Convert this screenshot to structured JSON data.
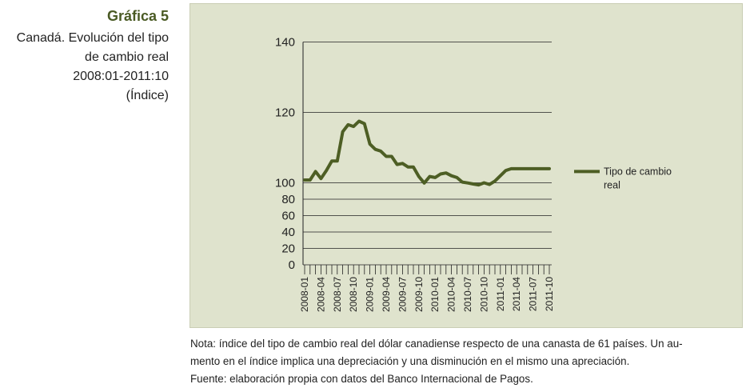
{
  "caption": {
    "number": "Gráfica 5",
    "lines": [
      "Canadá. Evolución del tipo",
      "de cambio real",
      "2008:01-2011:10",
      "(Índice)"
    ]
  },
  "notes": {
    "line1": "Nota: índice del tipo de cambio real del dólar canadiense respecto de una canasta de 61 países. Un au-",
    "line2": "mento en el índice implica una depreciación y una disminución en el mismo una apreciación.",
    "line3": "Fuente: elaboración propia con datos del Banco Internacional de Pagos."
  },
  "colors": {
    "panel_bg": "#dfe3cd",
    "series": "#4d5e24",
    "caption_accent": "#4a5a24"
  },
  "chart_data": {
    "type": "line",
    "title": "",
    "xlabel": "",
    "ylabel": "",
    "y_ticks": [
      0,
      20,
      40,
      60,
      80,
      100,
      120,
      140
    ],
    "ylim": [
      0,
      140
    ],
    "x_tick_labels": [
      "2008-01",
      "2008-04",
      "2008-07",
      "2008-10",
      "2009-01",
      "2009-04",
      "2009-07",
      "2009-10",
      "2010-01",
      "2010-04",
      "2010-07",
      "2010-10",
      "2011-01",
      "2011-04",
      "2011-07",
      "2011-10"
    ],
    "legend_position": "right",
    "grid": "horizontal",
    "x": [
      "2008-01",
      "2008-02",
      "2008-03",
      "2008-04",
      "2008-05",
      "2008-06",
      "2008-07",
      "2008-08",
      "2008-09",
      "2008-10",
      "2008-11",
      "2008-12",
      "2009-01",
      "2009-02",
      "2009-03",
      "2009-04",
      "2009-05",
      "2009-06",
      "2009-07",
      "2009-08",
      "2009-09",
      "2009-10",
      "2009-11",
      "2009-12",
      "2010-01",
      "2010-02",
      "2010-03",
      "2010-04",
      "2010-05",
      "2010-06",
      "2010-07",
      "2010-08",
      "2010-09",
      "2010-10",
      "2010-11",
      "2010-12",
      "2011-01",
      "2011-02",
      "2011-03",
      "2011-04",
      "2011-05",
      "2011-06",
      "2011-07",
      "2011-08",
      "2011-09",
      "2011-10"
    ],
    "series": [
      {
        "name": "Tipo de cambio real",
        "values": [
          100.8,
          100.8,
          103.2,
          101.2,
          103.5,
          106.2,
          106.2,
          114.5,
          116.5,
          116,
          117.5,
          116.8,
          111,
          109.5,
          109,
          107.5,
          107.5,
          105.2,
          105.5,
          104.5,
          104.5,
          101.8,
          99.7,
          101.8,
          101.5,
          102.5,
          102.8,
          102,
          101.5,
          100.2,
          99.8,
          98.5,
          97.5,
          100,
          98,
          100.5,
          102,
          103.5,
          104,
          104,
          104,
          104,
          104,
          104,
          104,
          104
        ]
      }
    ]
  }
}
